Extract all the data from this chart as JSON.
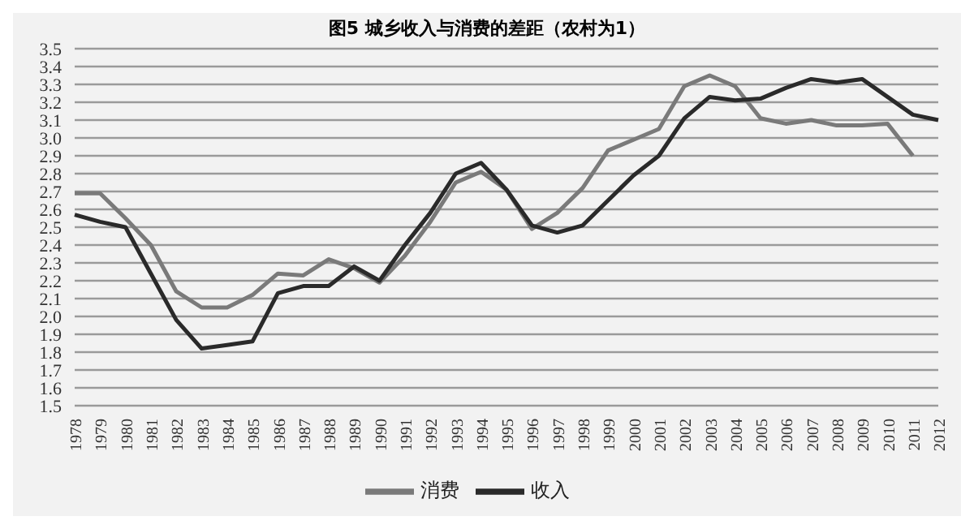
{
  "chart_data": {
    "type": "line",
    "title": "图5  城乡收入与消费的差距（农村为1）",
    "categories": [
      "1978",
      "1979",
      "1980",
      "1981",
      "1982",
      "1983",
      "1984",
      "1985",
      "1986",
      "1987",
      "1988",
      "1989",
      "1990",
      "1991",
      "1992",
      "1993",
      "1994",
      "1995",
      "1996",
      "1997",
      "1998",
      "1999",
      "2000",
      "2001",
      "2002",
      "2003",
      "2004",
      "2005",
      "2006",
      "2007",
      "2008",
      "2009",
      "2010",
      "2011",
      "2012"
    ],
    "series": [
      {
        "name": "消费",
        "color": "#7a7a7a",
        "values": [
          2.69,
          2.69,
          2.55,
          2.4,
          2.14,
          2.05,
          2.05,
          2.12,
          2.24,
          2.23,
          2.32,
          2.27,
          2.19,
          2.34,
          2.53,
          2.75,
          2.81,
          2.71,
          2.49,
          2.58,
          2.72,
          2.93,
          2.99,
          3.05,
          3.29,
          3.35,
          3.29,
          3.11,
          3.08,
          3.1,
          3.07,
          3.07,
          3.08,
          2.9,
          null
        ]
      },
      {
        "name": "收入",
        "color": "#2a2a2a",
        "values": [
          2.57,
          2.53,
          2.5,
          2.24,
          1.98,
          1.82,
          1.84,
          1.86,
          2.13,
          2.17,
          2.17,
          2.28,
          2.2,
          2.4,
          2.58,
          2.8,
          2.86,
          2.71,
          2.51,
          2.47,
          2.51,
          2.65,
          2.79,
          2.9,
          3.11,
          3.23,
          3.21,
          3.22,
          3.28,
          3.33,
          3.31,
          3.33,
          3.23,
          3.13,
          3.1
        ]
      }
    ],
    "ylim": [
      1.5,
      3.5
    ],
    "yticks": [
      {
        "value": 1.5,
        "label": "1.5"
      },
      {
        "value": 1.6,
        "label": "1.6"
      },
      {
        "value": 1.7,
        "label": "1.7"
      },
      {
        "value": 1.8,
        "label": "1.8"
      },
      {
        "value": 1.9,
        "label": "1.9"
      },
      {
        "value": 2.0,
        "label": "2.0"
      },
      {
        "value": 2.1,
        "label": "2.1"
      },
      {
        "value": 2.2,
        "label": "2.2"
      },
      {
        "value": 2.3,
        "label": "2.3"
      },
      {
        "value": 2.4,
        "label": "2.4"
      },
      {
        "value": 2.5,
        "label": "2.5"
      },
      {
        "value": 2.6,
        "label": "2.6"
      },
      {
        "value": 2.7,
        "label": "2.7"
      },
      {
        "value": 2.8,
        "label": "2.8"
      },
      {
        "value": 2.9,
        "label": "2.9"
      },
      {
        "value": 3.0,
        "label": "3.0"
      },
      {
        "value": 3.1,
        "label": "3.1"
      },
      {
        "value": 3.2,
        "label": "3.2"
      },
      {
        "value": 3.3,
        "label": "3.3"
      },
      {
        "value": 3.4,
        "label": "3.4"
      },
      {
        "value": 3.5,
        "label": "3.5"
      }
    ],
    "grid": "y",
    "legend": "bottom",
    "marker": "none",
    "line_style": "solid"
  }
}
